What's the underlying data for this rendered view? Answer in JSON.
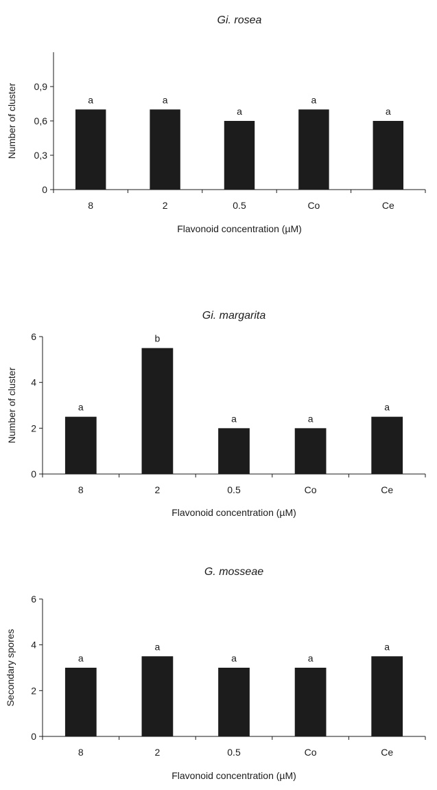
{
  "chart_data": [
    {
      "type": "bar",
      "title": "Gi. rosea",
      "xlabel": "Flavonoid concentration (µM)",
      "ylabel": "Number of cluster",
      "categories": [
        "8",
        "2",
        "0.5",
        "Co",
        "Ce"
      ],
      "values": [
        0.7,
        0.7,
        0.6,
        0.7,
        0.6
      ],
      "significance": [
        "a",
        "a",
        "a",
        "a",
        "a"
      ],
      "ylim": [
        0,
        1.2
      ],
      "yticks": [
        0,
        0.3,
        0.6,
        0.9
      ],
      "ytick_labels": [
        "0",
        "0,3",
        "0,6",
        "0,9"
      ],
      "grid": false,
      "color": "#1c1c1c"
    },
    {
      "type": "bar",
      "title": "Gi. margarita",
      "xlabel": "Flavonoid concentration (µM)",
      "ylabel": "Number of cluster",
      "categories": [
        "8",
        "2",
        "0.5",
        "Co",
        "Ce"
      ],
      "values": [
        2.5,
        5.5,
        2.0,
        2.0,
        2.5
      ],
      "significance": [
        "a",
        "b",
        "a",
        "a",
        "a"
      ],
      "ylim": [
        0,
        6
      ],
      "yticks": [
        0,
        2,
        4,
        6
      ],
      "ytick_labels": [
        "0",
        "2",
        "4",
        "6"
      ],
      "grid": false,
      "color": "#1c1c1c"
    },
    {
      "type": "bar",
      "title": "G. mosseae",
      "xlabel": "Flavonoid concentration (µM)",
      "ylabel": "Secondary spores",
      "categories": [
        "8",
        "2",
        "0.5",
        "Co",
        "Ce"
      ],
      "values": [
        3.0,
        3.5,
        3.0,
        3.0,
        3.5
      ],
      "significance": [
        "a",
        "a",
        "a",
        "a",
        "a"
      ],
      "ylim": [
        0,
        6
      ],
      "yticks": [
        0,
        2,
        4,
        6
      ],
      "ytick_labels": [
        "0",
        "2",
        "4",
        "6"
      ],
      "grid": false,
      "color": "#1c1c1c"
    }
  ]
}
